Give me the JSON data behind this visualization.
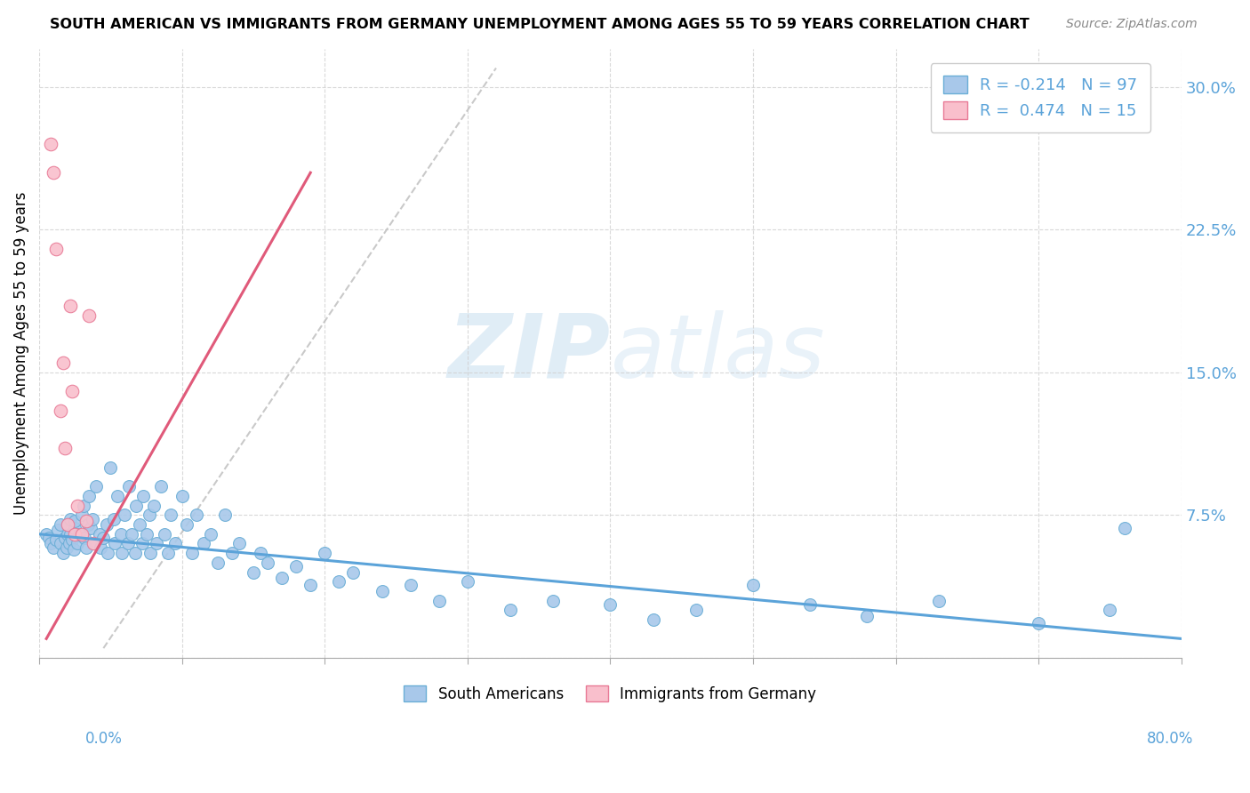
{
  "title": "SOUTH AMERICAN VS IMMIGRANTS FROM GERMANY UNEMPLOYMENT AMONG AGES 55 TO 59 YEARS CORRELATION CHART",
  "source": "Source: ZipAtlas.com",
  "ylabel": "Unemployment Among Ages 55 to 59 years",
  "xlim": [
    0.0,
    0.8
  ],
  "ylim": [
    0.0,
    0.32
  ],
  "ytick_vals": [
    0.0,
    0.075,
    0.15,
    0.225,
    0.3
  ],
  "ytick_labels": [
    "",
    "7.5%",
    "15.0%",
    "22.5%",
    "30.0%"
  ],
  "blue_scatter_color": "#a8c8ea",
  "blue_scatter_edge": "#6aaed6",
  "pink_scatter_color": "#f9bfcc",
  "pink_scatter_edge": "#e87a96",
  "blue_line_color": "#5ba3d9",
  "pink_line_color": "#e05a7a",
  "gray_dash_color": "#c0c0c0",
  "legend_r_blue": "-0.214",
  "legend_n_blue": "97",
  "legend_r_pink": "0.474",
  "legend_n_pink": "15",
  "watermark_zip": "ZIP",
  "watermark_atlas": "atlas",
  "blue_line_x": [
    0.0,
    0.8
  ],
  "blue_line_y": [
    0.065,
    0.01
  ],
  "pink_line_x": [
    0.005,
    0.19
  ],
  "pink_line_y": [
    0.01,
    0.255
  ],
  "gray_line_x": [
    0.045,
    0.32
  ],
  "gray_line_y": [
    0.005,
    0.31
  ],
  "sa_x": [
    0.005,
    0.007,
    0.008,
    0.01,
    0.012,
    0.013,
    0.015,
    0.015,
    0.017,
    0.018,
    0.019,
    0.02,
    0.02,
    0.021,
    0.022,
    0.022,
    0.023,
    0.024,
    0.025,
    0.025,
    0.027,
    0.028,
    0.03,
    0.031,
    0.032,
    0.033,
    0.034,
    0.035,
    0.036,
    0.037,
    0.038,
    0.04,
    0.042,
    0.043,
    0.045,
    0.047,
    0.048,
    0.05,
    0.052,
    0.053,
    0.055,
    0.057,
    0.058,
    0.06,
    0.062,
    0.063,
    0.065,
    0.067,
    0.068,
    0.07,
    0.072,
    0.073,
    0.075,
    0.077,
    0.078,
    0.08,
    0.082,
    0.085,
    0.088,
    0.09,
    0.092,
    0.095,
    0.1,
    0.103,
    0.107,
    0.11,
    0.115,
    0.12,
    0.125,
    0.13,
    0.135,
    0.14,
    0.15,
    0.155,
    0.16,
    0.17,
    0.18,
    0.19,
    0.2,
    0.21,
    0.22,
    0.24,
    0.26,
    0.28,
    0.3,
    0.33,
    0.36,
    0.4,
    0.43,
    0.46,
    0.5,
    0.54,
    0.58,
    0.63,
    0.7,
    0.75,
    0.76
  ],
  "sa_y": [
    0.065,
    0.063,
    0.06,
    0.058,
    0.062,
    0.067,
    0.06,
    0.07,
    0.055,
    0.063,
    0.058,
    0.065,
    0.07,
    0.06,
    0.065,
    0.073,
    0.062,
    0.057,
    0.068,
    0.072,
    0.06,
    0.065,
    0.075,
    0.08,
    0.063,
    0.058,
    0.07,
    0.085,
    0.068,
    0.073,
    0.06,
    0.09,
    0.065,
    0.058,
    0.063,
    0.07,
    0.055,
    0.1,
    0.073,
    0.06,
    0.085,
    0.065,
    0.055,
    0.075,
    0.06,
    0.09,
    0.065,
    0.055,
    0.08,
    0.07,
    0.06,
    0.085,
    0.065,
    0.075,
    0.055,
    0.08,
    0.06,
    0.09,
    0.065,
    0.055,
    0.075,
    0.06,
    0.085,
    0.07,
    0.055,
    0.075,
    0.06,
    0.065,
    0.05,
    0.075,
    0.055,
    0.06,
    0.045,
    0.055,
    0.05,
    0.042,
    0.048,
    0.038,
    0.055,
    0.04,
    0.045,
    0.035,
    0.038,
    0.03,
    0.04,
    0.025,
    0.03,
    0.028,
    0.02,
    0.025,
    0.038,
    0.028,
    0.022,
    0.03,
    0.018,
    0.025,
    0.068
  ],
  "ger_x": [
    0.008,
    0.01,
    0.012,
    0.015,
    0.017,
    0.018,
    0.02,
    0.022,
    0.023,
    0.025,
    0.027,
    0.03,
    0.033,
    0.035,
    0.038
  ],
  "ger_y": [
    0.27,
    0.255,
    0.215,
    0.13,
    0.155,
    0.11,
    0.07,
    0.185,
    0.14,
    0.065,
    0.08,
    0.065,
    0.072,
    0.18,
    0.06
  ]
}
